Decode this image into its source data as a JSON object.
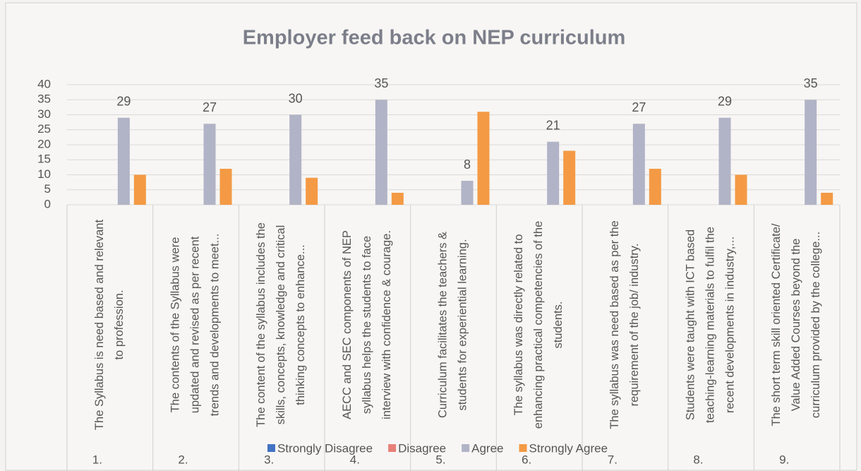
{
  "chart_data": {
    "type": "bar",
    "title": "Employer feed back on NEP curriculum",
    "categories": [
      "The Syllabus is need based and relevant to profession.",
      "The contents of the Syllabus were updated and revised as per recent trends and developments to meet...",
      "The content of the syllabus includes the skills, concepts, knowledge and critical thinking concepts to enhance...",
      "AECC and SEC components of NEP syllabus helps the students to face interview with confidence & courage.",
      "Curriculum facilitates the teachers & students for experiential learning.",
      "The syllabus was directly related to enhancing practical competencies of the students.",
      "The syllabus was need based as per the requirement of the job/ industry.",
      "Students were taught with ICT based teaching-learning materials to fulfil the recent developments in industry,...",
      "The short term skill oriented Certificate/ Value Added Courses beyond the curriculum provided by the college..."
    ],
    "category_numbers": [
      "1.",
      "2.",
      "3.",
      "4.",
      "5.",
      "6.",
      "7.",
      "8.",
      "9."
    ],
    "series": [
      {
        "name": "Strongly Disagree",
        "color": "#4472c4",
        "values": [
          0,
          0,
          0,
          0,
          0,
          0,
          0,
          0,
          0
        ]
      },
      {
        "name": "Disagree",
        "color": "#e8807a",
        "values": [
          0,
          0,
          0,
          0,
          0,
          0,
          0,
          0,
          0
        ]
      },
      {
        "name": "Agree",
        "color": "#b1b3c6",
        "values": [
          29,
          27,
          30,
          35,
          8,
          21,
          27,
          29,
          35
        ],
        "data_labels": true
      },
      {
        "name": "Strongly Agree",
        "color": "#f49a45",
        "values": [
          10,
          12,
          9,
          4,
          31,
          18,
          12,
          10,
          4
        ]
      }
    ],
    "ylim": [
      0,
      40
    ],
    "yticks": [
      0,
      5,
      10,
      15,
      20,
      25,
      30,
      35,
      40
    ],
    "grid": true,
    "legend": "bottom"
  }
}
